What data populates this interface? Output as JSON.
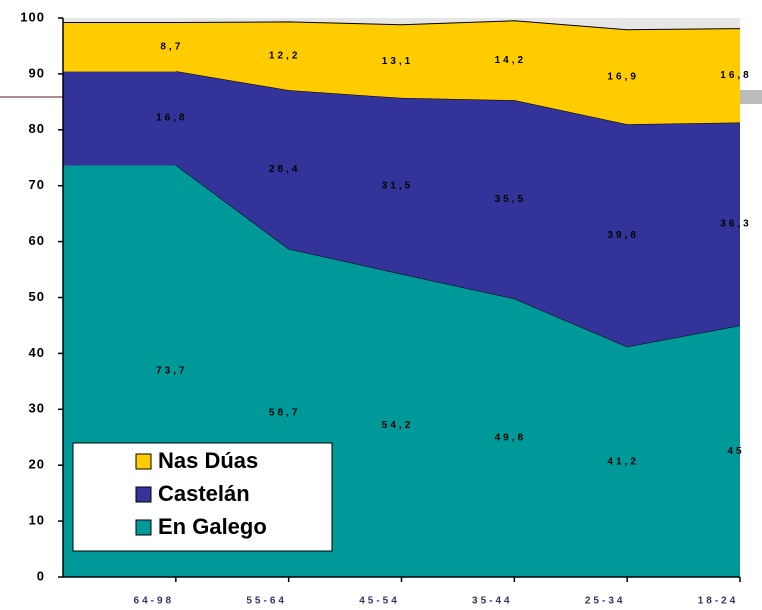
{
  "chart_data": {
    "type": "stacked-area",
    "categories": [
      "64-98",
      "55-64",
      "45-54",
      "35-44",
      "25-34",
      "18-24"
    ],
    "series": [
      {
        "name": "En Galego",
        "color": "#009999",
        "values": [
          73.7,
          58.7,
          54.2,
          49.8,
          41.2,
          45
        ],
        "value_labels": [
          "73,7",
          "58,7",
          "54,2",
          "49,8",
          "41,2",
          "45"
        ]
      },
      {
        "name": "Castelán",
        "color": "#333399",
        "values": [
          16.8,
          28.4,
          31.5,
          35.5,
          39.8,
          36.3
        ],
        "value_labels": [
          "16,8",
          "28,4",
          "31,5",
          "35,5",
          "39,8",
          "36,3"
        ]
      },
      {
        "name": "Nas Dúas",
        "color": "#ffcc00",
        "values": [
          8.7,
          12.2,
          13.1,
          14.2,
          16.9,
          16.8
        ],
        "value_labels": [
          "8,7",
          "12,2",
          "13,1",
          "14,2",
          "16,9",
          "16,8"
        ]
      }
    ],
    "ylim": [
      0,
      100
    ],
    "yticks": [
      0,
      10,
      20,
      30,
      40,
      50,
      60,
      70,
      80,
      90,
      100
    ]
  }
}
